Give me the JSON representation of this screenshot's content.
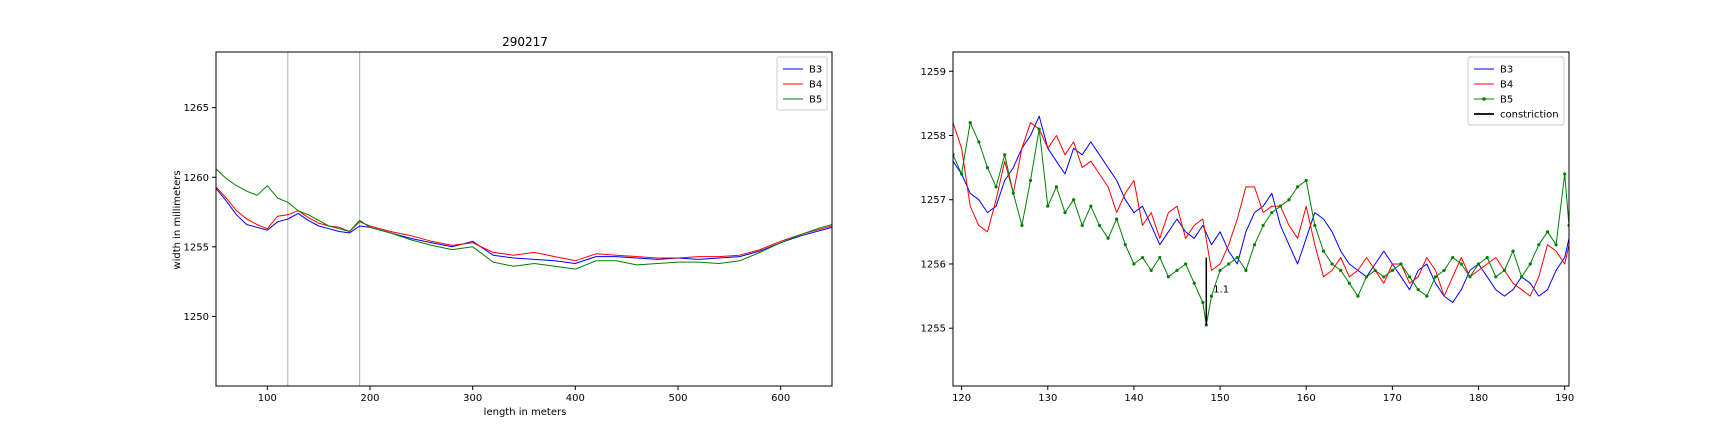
{
  "chart_data": [
    {
      "type": "line",
      "title": "290217",
      "xlabel": "length in meters",
      "ylabel": "width in millimeters",
      "xlim": [
        50,
        650
      ],
      "ylim": [
        1245,
        1269
      ],
      "x_ticks": [
        100,
        200,
        300,
        400,
        500,
        600
      ],
      "y_ticks": [
        1250,
        1255,
        1260,
        1265
      ],
      "vlines": [
        120,
        190
      ],
      "legend_position": "top-right",
      "grid": false,
      "series": [
        {
          "name": "B3",
          "color": "#0000ff",
          "x": [
            50,
            60,
            70,
            80,
            90,
            100,
            110,
            120,
            130,
            140,
            150,
            160,
            170,
            180,
            190,
            200,
            220,
            240,
            260,
            280,
            300,
            320,
            340,
            360,
            380,
            400,
            420,
            440,
            460,
            480,
            500,
            520,
            540,
            560,
            580,
            600,
            620,
            640,
            650
          ],
          "y": [
            1259.2,
            1258.3,
            1257.3,
            1256.6,
            1256.4,
            1256.2,
            1256.8,
            1257.0,
            1257.4,
            1256.9,
            1256.5,
            1256.3,
            1256.1,
            1256.0,
            1256.5,
            1256.4,
            1256.0,
            1255.6,
            1255.3,
            1255.0,
            1255.4,
            1254.4,
            1254.2,
            1254.1,
            1254.0,
            1253.8,
            1254.3,
            1254.3,
            1254.2,
            1254.1,
            1254.2,
            1254.1,
            1254.2,
            1254.3,
            1254.7,
            1255.3,
            1255.8,
            1256.2,
            1256.4
          ]
        },
        {
          "name": "B4",
          "color": "#ff0000",
          "x": [
            50,
            60,
            70,
            80,
            90,
            100,
            110,
            120,
            130,
            140,
            150,
            160,
            170,
            180,
            190,
            200,
            220,
            240,
            260,
            280,
            300,
            320,
            340,
            360,
            380,
            400,
            420,
            440,
            460,
            480,
            500,
            520,
            540,
            560,
            580,
            600,
            620,
            640,
            650
          ],
          "y": [
            1259.3,
            1258.5,
            1257.6,
            1257.0,
            1256.6,
            1256.3,
            1257.2,
            1257.3,
            1257.6,
            1257.1,
            1256.7,
            1256.5,
            1256.4,
            1256.1,
            1256.8,
            1256.5,
            1256.1,
            1255.8,
            1255.4,
            1255.1,
            1255.3,
            1254.6,
            1254.4,
            1254.6,
            1254.3,
            1254.0,
            1254.5,
            1254.4,
            1254.3,
            1254.2,
            1254.2,
            1254.3,
            1254.3,
            1254.4,
            1254.8,
            1255.4,
            1255.9,
            1256.3,
            1256.5
          ]
        },
        {
          "name": "B5",
          "color": "#008000",
          "x": [
            50,
            60,
            70,
            80,
            90,
            100,
            110,
            120,
            130,
            140,
            150,
            160,
            170,
            180,
            190,
            200,
            220,
            240,
            260,
            280,
            300,
            320,
            340,
            360,
            380,
            400,
            420,
            440,
            460,
            480,
            500,
            520,
            540,
            560,
            580,
            600,
            620,
            640,
            650
          ],
          "y": [
            1260.6,
            1259.9,
            1259.4,
            1259.0,
            1258.7,
            1259.4,
            1258.5,
            1258.2,
            1257.6,
            1257.3,
            1256.9,
            1256.5,
            1256.3,
            1256.1,
            1256.9,
            1256.4,
            1256.0,
            1255.5,
            1255.1,
            1254.8,
            1255.0,
            1253.9,
            1253.6,
            1253.8,
            1253.6,
            1253.4,
            1254.0,
            1254.0,
            1253.7,
            1253.8,
            1253.9,
            1253.9,
            1253.8,
            1254.0,
            1254.6,
            1255.3,
            1255.9,
            1256.4,
            1256.6
          ]
        }
      ]
    },
    {
      "type": "line",
      "xlim": [
        119,
        190.5
      ],
      "ylim": [
        1254.1,
        1259.3
      ],
      "x_ticks": [
        120,
        130,
        140,
        150,
        160,
        170,
        180,
        190
      ],
      "y_ticks": [
        1255,
        1256,
        1257,
        1258,
        1259
      ],
      "legend_position": "top-right",
      "grid": false,
      "annotation": {
        "text": "1.1",
        "x": 149.2,
        "y": 1255.6
      },
      "constriction": {
        "x": 148.4,
        "y_top": 1256.1,
        "y_bottom": 1255.05
      },
      "series": [
        {
          "name": "B3",
          "color": "#0000ff",
          "x": [
            119,
            120,
            121,
            122,
            123,
            124,
            125,
            126,
            127,
            128,
            129,
            130,
            131,
            132,
            133,
            134,
            135,
            136,
            137,
            138,
            139,
            140,
            141,
            142,
            143,
            144,
            145,
            146,
            147,
            148,
            149,
            150,
            151,
            152,
            153,
            154,
            155,
            156,
            157,
            158,
            159,
            160,
            161,
            162,
            163,
            164,
            165,
            166,
            167,
            168,
            169,
            170,
            171,
            172,
            173,
            174,
            175,
            176,
            177,
            178,
            179,
            180,
            181,
            182,
            183,
            184,
            185,
            186,
            187,
            188,
            189,
            190,
            190.5
          ],
          "y": [
            1257.6,
            1257.4,
            1257.1,
            1257.0,
            1256.8,
            1256.9,
            1257.3,
            1257.5,
            1257.8,
            1258.0,
            1258.3,
            1257.8,
            1257.6,
            1257.4,
            1257.8,
            1257.7,
            1257.9,
            1257.7,
            1257.5,
            1257.3,
            1257.0,
            1256.8,
            1256.9,
            1256.6,
            1256.3,
            1256.5,
            1256.7,
            1256.5,
            1256.4,
            1256.6,
            1256.3,
            1256.5,
            1256.2,
            1256.0,
            1256.5,
            1256.8,
            1256.9,
            1257.1,
            1256.6,
            1256.3,
            1256.0,
            1256.4,
            1256.8,
            1256.7,
            1256.5,
            1256.2,
            1256.0,
            1255.9,
            1255.8,
            1256.0,
            1256.2,
            1256.0,
            1255.8,
            1255.6,
            1255.9,
            1256.0,
            1255.7,
            1255.5,
            1255.4,
            1255.6,
            1255.9,
            1256.0,
            1255.8,
            1255.6,
            1255.5,
            1255.6,
            1255.8,
            1255.7,
            1255.5,
            1255.6,
            1255.9,
            1256.1,
            1256.4
          ]
        },
        {
          "name": "B4",
          "color": "#ff0000",
          "x": [
            119,
            120,
            121,
            122,
            123,
            124,
            125,
            126,
            127,
            128,
            129,
            130,
            131,
            132,
            133,
            134,
            135,
            136,
            137,
            138,
            139,
            140,
            141,
            142,
            143,
            144,
            145,
            146,
            147,
            148,
            149,
            150,
            151,
            152,
            153,
            154,
            155,
            156,
            157,
            158,
            159,
            160,
            161,
            162,
            163,
            164,
            165,
            166,
            167,
            168,
            169,
            170,
            171,
            172,
            173,
            174,
            175,
            176,
            177,
            178,
            179,
            180,
            181,
            182,
            183,
            184,
            185,
            186,
            187,
            188,
            189,
            190,
            190.5
          ],
          "y": [
            1258.2,
            1257.8,
            1256.9,
            1256.6,
            1256.5,
            1257.0,
            1257.6,
            1257.1,
            1257.8,
            1258.2,
            1258.1,
            1257.8,
            1258.0,
            1257.7,
            1257.9,
            1257.5,
            1257.6,
            1257.4,
            1257.2,
            1256.8,
            1257.1,
            1257.3,
            1256.6,
            1256.8,
            1256.4,
            1256.8,
            1256.9,
            1256.4,
            1256.6,
            1256.7,
            1255.9,
            1256.0,
            1256.3,
            1256.7,
            1257.2,
            1257.2,
            1256.8,
            1256.9,
            1256.9,
            1256.6,
            1256.4,
            1256.9,
            1256.3,
            1255.8,
            1255.9,
            1256.1,
            1255.8,
            1255.9,
            1256.1,
            1255.9,
            1255.7,
            1256.0,
            1256.0,
            1255.7,
            1255.8,
            1256.1,
            1255.9,
            1255.5,
            1255.8,
            1256.1,
            1255.8,
            1255.9,
            1256.0,
            1256.1,
            1255.9,
            1255.7,
            1255.6,
            1255.5,
            1255.8,
            1256.3,
            1256.2,
            1256.0,
            1256.3
          ]
        },
        {
          "name": "B5",
          "color": "#008000",
          "x": [
            119,
            120,
            121,
            122,
            123,
            124,
            125,
            126,
            127,
            128,
            129,
            130,
            131,
            132,
            133,
            134,
            135,
            136,
            137,
            138,
            139,
            140,
            141,
            142,
            143,
            144,
            145,
            146,
            147,
            148,
            148.4,
            149,
            150,
            151,
            152,
            153,
            154,
            155,
            156,
            157,
            158,
            159,
            160,
            161,
            162,
            163,
            164,
            165,
            166,
            167,
            168,
            169,
            170,
            171,
            172,
            173,
            174,
            175,
            176,
            177,
            178,
            179,
            180,
            181,
            182,
            183,
            184,
            185,
            186,
            187,
            188,
            189,
            190,
            190.5
          ],
          "y": [
            1257.7,
            1257.4,
            1258.2,
            1257.9,
            1257.5,
            1257.2,
            1257.7,
            1257.1,
            1256.6,
            1257.3,
            1258.1,
            1256.9,
            1257.2,
            1256.8,
            1257.0,
            1256.6,
            1256.9,
            1256.6,
            1256.4,
            1256.7,
            1256.3,
            1256.0,
            1256.1,
            1255.9,
            1256.1,
            1255.8,
            1255.9,
            1256.0,
            1255.7,
            1255.4,
            1255.05,
            1255.5,
            1255.9,
            1256.0,
            1256.1,
            1255.9,
            1256.3,
            1256.6,
            1256.8,
            1256.9,
            1257.0,
            1257.2,
            1257.3,
            1256.6,
            1256.2,
            1256.0,
            1255.9,
            1255.7,
            1255.5,
            1255.8,
            1255.9,
            1255.8,
            1255.9,
            1256.0,
            1255.8,
            1255.6,
            1255.5,
            1255.8,
            1255.9,
            1256.1,
            1256.0,
            1255.8,
            1256.0,
            1256.1,
            1255.8,
            1255.9,
            1256.2,
            1255.8,
            1256.0,
            1256.3,
            1256.5,
            1256.3,
            1257.4,
            1256.6
          ]
        }
      ]
    }
  ],
  "legend_items": {
    "left": [
      "B3",
      "B4",
      "B5"
    ],
    "right": [
      "B3",
      "B4",
      "B5",
      "constriction"
    ]
  }
}
